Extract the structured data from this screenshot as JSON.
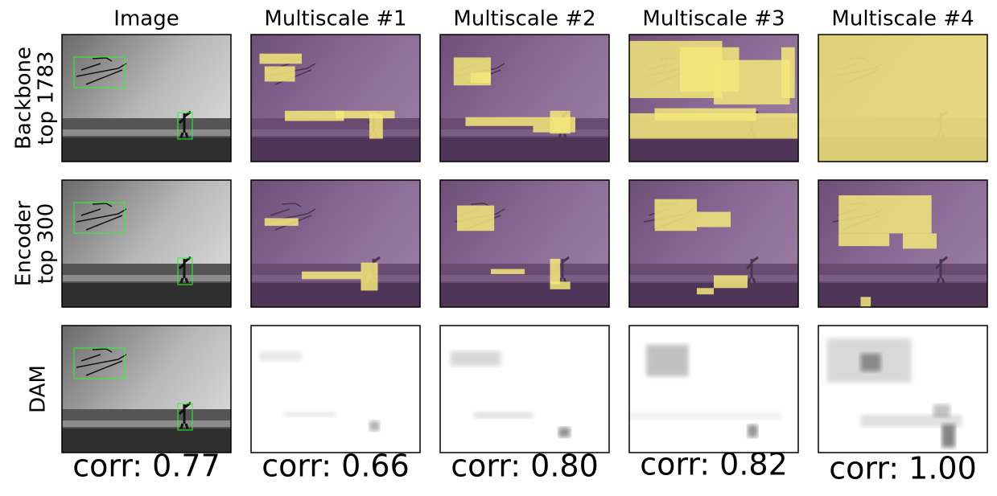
{
  "columns": [
    "Image",
    "Multiscale #1",
    "Multiscale #2",
    "Multiscale #3",
    "Multiscale #4"
  ],
  "rows": [
    {
      "label": [
        "Backbone",
        "top 1783"
      ]
    },
    {
      "label": [
        "Encoder",
        "top 300"
      ]
    },
    {
      "label": [
        "DAM"
      ]
    }
  ],
  "corr": [
    "corr: 0.77",
    "corr: 0.66",
    "corr: 0.80",
    "corr: 0.82",
    "corr: 1.00"
  ]
}
